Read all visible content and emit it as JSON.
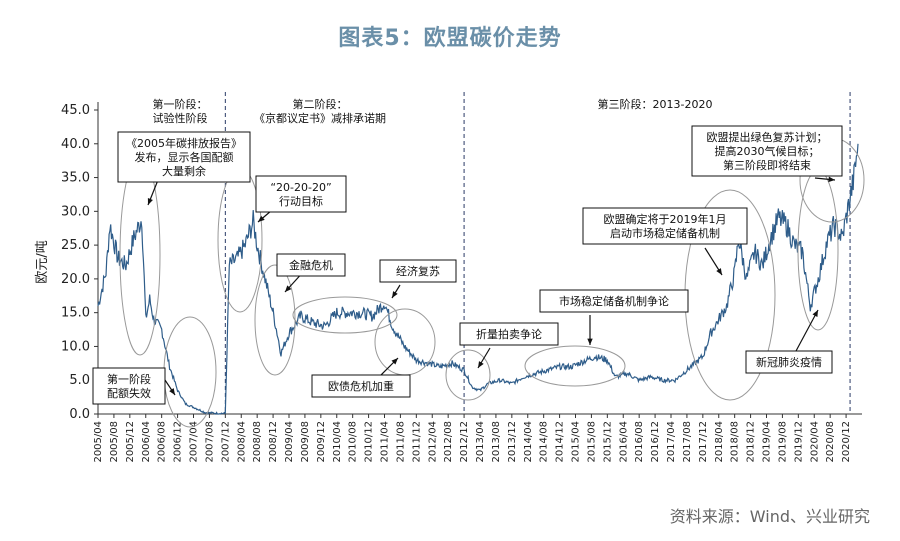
{
  "title": "图表5：欧盟碳价走势",
  "source": "资料来源：Wind、兴业研究",
  "chart_data": {
    "type": "line",
    "ylabel": "欧元/吨",
    "ylim": [
      0,
      45
    ],
    "yticks": [
      "0.0",
      "5.0",
      "10.0",
      "15.0",
      "20.0",
      "25.0",
      "30.0",
      "35.0",
      "40.0",
      "45.0"
    ],
    "xlim": [
      "2005-04",
      "2021-04"
    ],
    "xticks": [
      "2005/04",
      "2005/08",
      "2005/12",
      "2006/04",
      "2006/08",
      "2006/12",
      "2007/04",
      "2007/08",
      "2007/12",
      "2008/04",
      "2008/08",
      "2008/12",
      "2009/04",
      "2009/08",
      "2009/12",
      "2010/04",
      "2010/08",
      "2010/12",
      "2011/04",
      "2011/08",
      "2011/12",
      "2012/04",
      "2012/08",
      "2012/12",
      "2013/04",
      "2013/08",
      "2013/12",
      "2014/04",
      "2014/08",
      "2014/12",
      "2015/04",
      "2015/08",
      "2015/12",
      "2016/04",
      "2016/08",
      "2016/12",
      "2017/04",
      "2017/08",
      "2017/12",
      "2018/04",
      "2018/08",
      "2018/12",
      "2019/04",
      "2019/08",
      "2019/12",
      "2020/04",
      "2020/08",
      "2020/12"
    ],
    "series": [
      {
        "color": "#2f5d8a",
        "x": [
          "2005-04",
          "2005-06",
          "2005-07",
          "2005-09",
          "2005-11",
          "2006-01",
          "2006-03",
          "2006-04",
          "2006-05",
          "2006-06",
          "2006-08",
          "2006-10",
          "2006-12",
          "2007-02",
          "2007-04",
          "2007-07",
          "2007-10",
          "2007-12",
          "2008-01",
          "2008-03",
          "2008-05",
          "2008-07",
          "2008-08",
          "2008-10",
          "2008-12",
          "2009-02",
          "2009-04",
          "2009-07",
          "2009-10",
          "2010-01",
          "2010-04",
          "2010-07",
          "2010-10",
          "2011-01",
          "2011-04",
          "2011-06",
          "2011-09",
          "2011-12",
          "2012-03",
          "2012-06",
          "2012-09",
          "2012-12",
          "2013-02",
          "2013-04",
          "2013-06",
          "2013-09",
          "2013-12",
          "2014-03",
          "2014-06",
          "2014-09",
          "2014-12",
          "2015-03",
          "2015-06",
          "2015-09",
          "2015-12",
          "2016-02",
          "2016-05",
          "2016-08",
          "2016-11",
          "2017-02",
          "2017-05",
          "2017-08",
          "2017-10",
          "2017-12",
          "2018-02",
          "2018-04",
          "2018-06",
          "2018-08",
          "2018-09",
          "2018-11",
          "2019-01",
          "2019-03",
          "2019-05",
          "2019-07",
          "2019-09",
          "2019-11",
          "2020-01",
          "2020-03",
          "2020-05",
          "2020-07",
          "2020-09",
          "2020-11",
          "2021-01",
          "2021-02",
          "2021-03"
        ],
        "y": [
          16.0,
          21.0,
          28.0,
          23.0,
          22.0,
          26.0,
          29.0,
          14.0,
          17.0,
          14.0,
          12.5,
          7.0,
          3.5,
          1.5,
          1.0,
          0.2,
          0.1,
          0.1,
          22.0,
          23.0,
          25.0,
          28.5,
          25.0,
          20.0,
          15.0,
          9.0,
          12.0,
          14.5,
          13.5,
          13.0,
          15.0,
          15.0,
          15.0,
          14.5,
          16.5,
          13.0,
          10.0,
          8.0,
          7.5,
          7.0,
          7.5,
          6.5,
          4.0,
          3.5,
          4.5,
          5.0,
          4.5,
          5.5,
          6.0,
          6.5,
          7.0,
          7.0,
          7.8,
          8.5,
          8.0,
          5.5,
          6.0,
          5.0,
          5.5,
          5.0,
          5.0,
          6.5,
          7.5,
          8.5,
          12.0,
          14.0,
          16.0,
          21.0,
          26.0,
          20.0,
          24.0,
          22.0,
          26.0,
          29.0,
          28.0,
          25.0,
          24.0,
          16.0,
          20.0,
          25.0,
          28.0,
          26.0,
          32.0,
          35.0,
          40.0
        ]
      }
    ],
    "phases": [
      {
        "x": "2007-12",
        "label": "第一阶段：",
        "label2": "试验性阶段"
      },
      {
        "x": "2012-12",
        "label": "第二阶段：",
        "label2": "《京都议定书》减排承诺期"
      },
      {
        "x": "2021-01",
        "label": "第三阶段：2013-2020",
        "label2": ""
      }
    ],
    "annotations": [
      {
        "lines": [
          "《2005年碳排放报告》",
          "发布，显示各国配额",
          "大量剩余"
        ]
      },
      {
        "lines": [
          "第一阶段",
          "配额失效"
        ]
      },
      {
        "lines": [
          "“20-20-20”",
          "行动目标"
        ]
      },
      {
        "lines": [
          "金融危机"
        ]
      },
      {
        "lines": [
          "经济复苏"
        ]
      },
      {
        "lines": [
          "欧债危机加重"
        ]
      },
      {
        "lines": [
          "折量拍卖争论"
        ]
      },
      {
        "lines": [
          "市场稳定储备机制争论"
        ]
      },
      {
        "lines": [
          "欧盟确定将于2019年1月",
          "启动市场稳定储备机制"
        ]
      },
      {
        "lines": [
          "新冠肺炎疫情"
        ]
      },
      {
        "lines": [
          "欧盟提出绿色复苏计划；",
          "提高2030气候目标；",
          "第三阶段即将结束"
        ]
      }
    ]
  }
}
